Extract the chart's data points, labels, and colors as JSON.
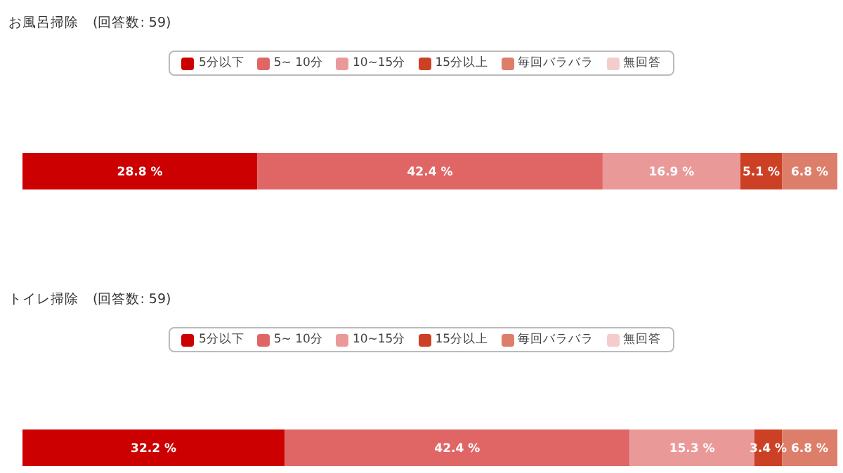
{
  "chart_data": [
    {
      "type": "bar",
      "orientation": "horizontal",
      "stacked": true,
      "title": "お風呂掃除　(回答数: 59)",
      "categories": [
        null
      ],
      "legend": "top",
      "tick_labels": false,
      "grid": false,
      "series": [
        {
          "name": "5分以下",
          "color": "#cc0000",
          "values": [
            28.8
          ],
          "value_labels": [
            "28.8 %"
          ]
        },
        {
          "name": "5~ 10分",
          "color": "#e06666",
          "values": [
            42.4
          ],
          "value_labels": [
            "42.4 %"
          ]
        },
        {
          "name": "10~15分",
          "color": "#ea9999",
          "values": [
            16.9
          ],
          "value_labels": [
            "16.9 %"
          ]
        },
        {
          "name": "15分以上",
          "color": "#cc4125",
          "values": [
            5.1
          ],
          "value_labels": [
            "5.1 %"
          ]
        },
        {
          "name": "毎回バラバラ",
          "color": "#dd7e6b",
          "values": [
            6.8
          ],
          "value_labels": [
            "6.8 %"
          ]
        },
        {
          "name": "無回答",
          "color": "#f4cccc",
          "values": [
            0
          ],
          "value_labels": [
            null
          ]
        }
      ]
    },
    {
      "type": "bar",
      "orientation": "horizontal",
      "stacked": true,
      "title": "トイレ掃除　(回答数: 59)",
      "categories": [
        null
      ],
      "legend": "top",
      "tick_labels": false,
      "grid": false,
      "series": [
        {
          "name": "5分以下",
          "color": "#cc0000",
          "values": [
            32.2
          ],
          "value_labels": [
            "32.2 %"
          ]
        },
        {
          "name": "5~ 10分",
          "color": "#e06666",
          "values": [
            42.4
          ],
          "value_labels": [
            "42.4 %"
          ]
        },
        {
          "name": "10~15分",
          "color": "#ea9999",
          "values": [
            15.3
          ],
          "value_labels": [
            "15.3 %"
          ]
        },
        {
          "name": "15分以上",
          "color": "#cc4125",
          "values": [
            3.4
          ],
          "value_labels": [
            "3.4 %"
          ]
        },
        {
          "name": "毎回バラバラ",
          "color": "#dd7e6b",
          "values": [
            6.8
          ],
          "value_labels": [
            "6.8 %"
          ]
        },
        {
          "name": "無回答",
          "color": "#f4cccc",
          "values": [
            0
          ],
          "value_labels": [
            null
          ]
        }
      ]
    }
  ]
}
